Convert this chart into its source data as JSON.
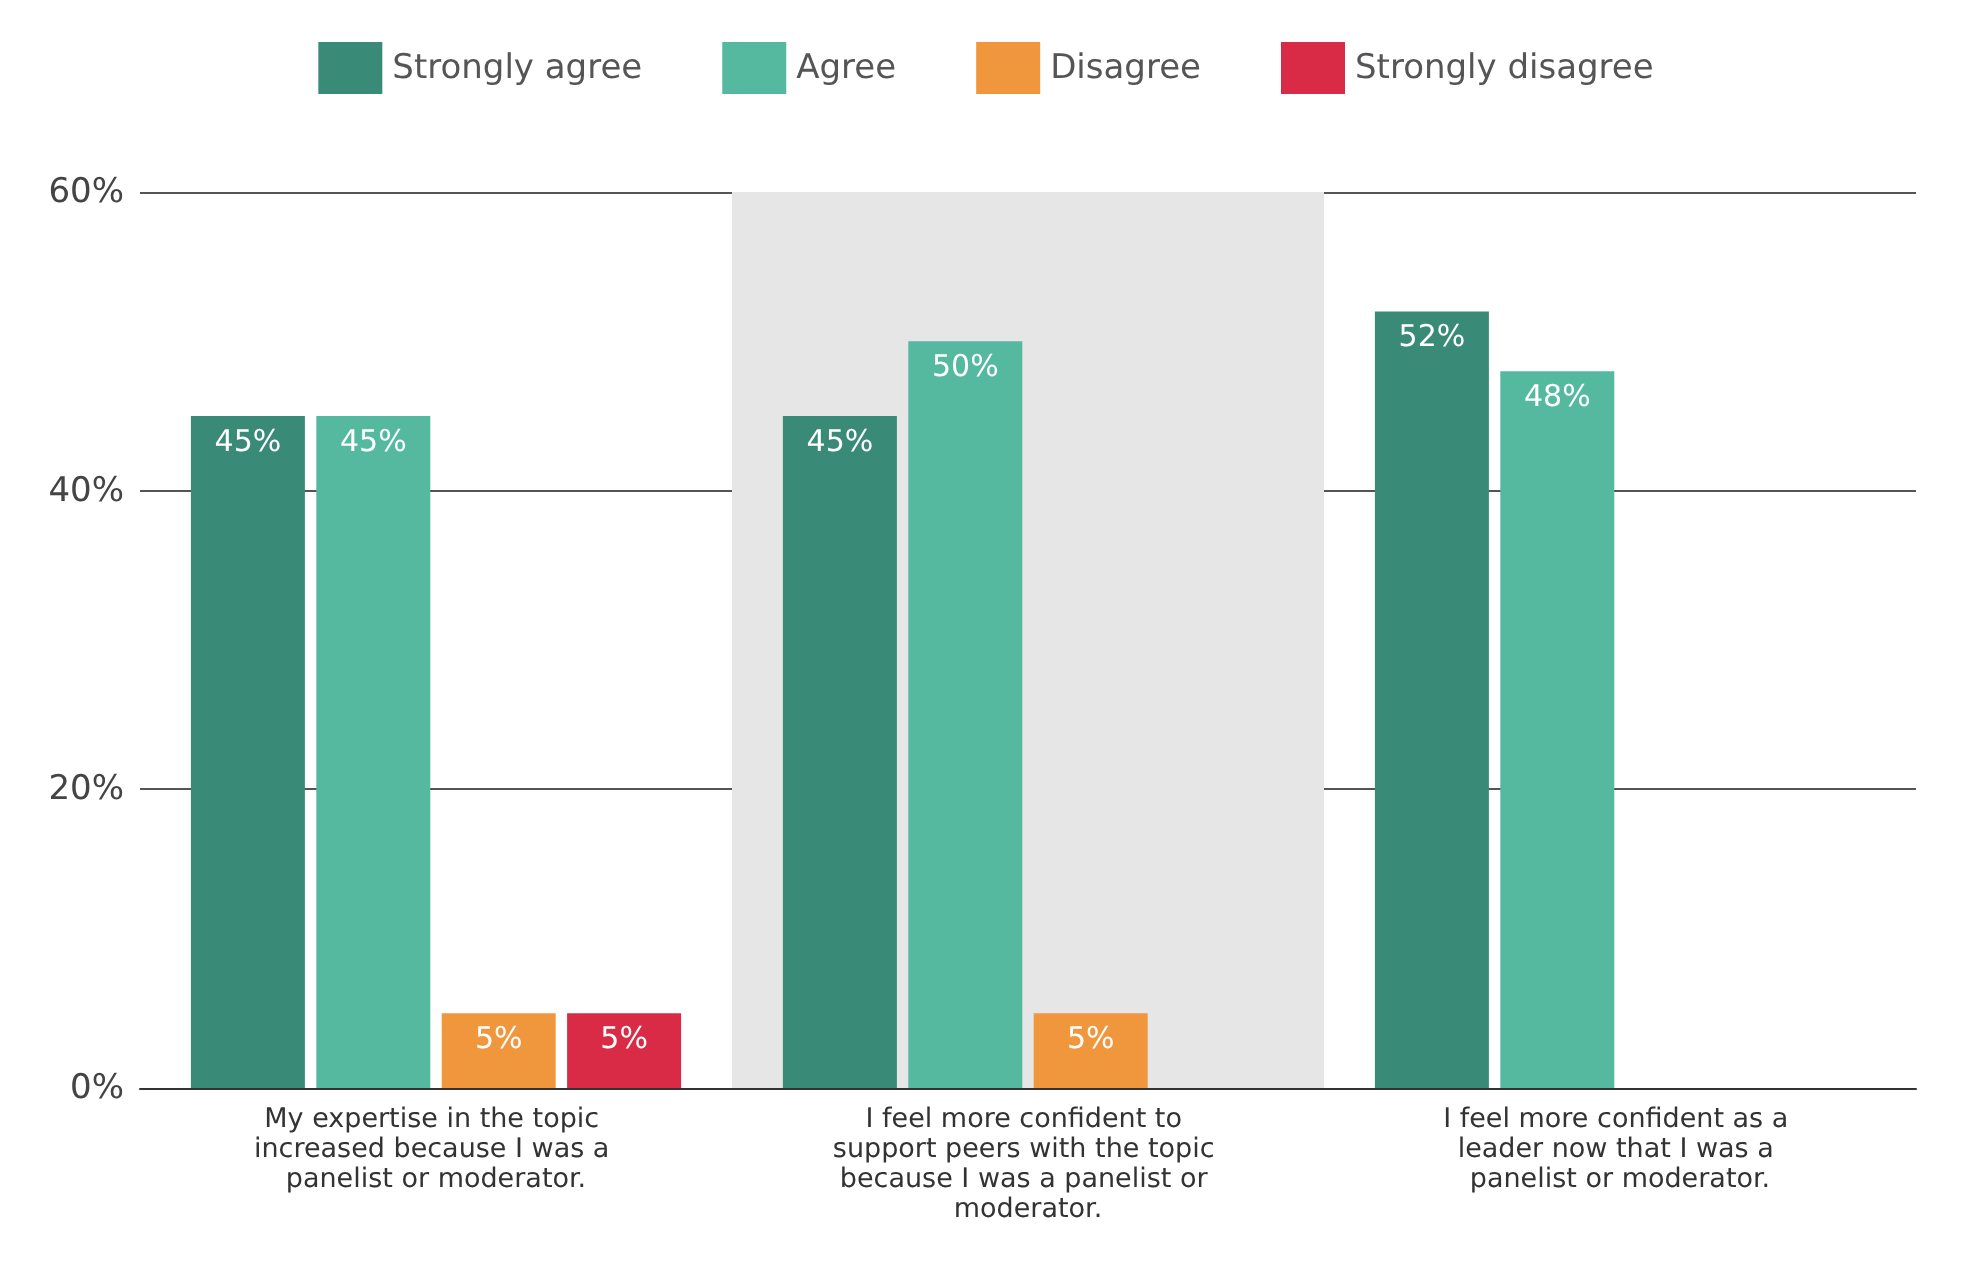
{
  "chart_data": {
    "type": "bar",
    "categories": [
      "My expertise in the topic increased because I was a panelist or moderator.",
      "I feel more confident to support peers with the topic because I was a panelist or moderator.",
      "I feel more confident as a leader now that I was a panelist or moderator."
    ],
    "series": [
      {
        "name": "Strongly agree",
        "color": "#3a8a78",
        "values": [
          45,
          45,
          52
        ],
        "value_labels": [
          "45%",
          "45%",
          "52%"
        ]
      },
      {
        "name": "Agree",
        "color": "#55b9a0",
        "values": [
          45,
          50,
          48
        ],
        "value_labels": [
          "45%",
          "50%",
          "48%"
        ]
      },
      {
        "name": "Disagree",
        "color": "#f0963c",
        "values": [
          5,
          5,
          null
        ],
        "value_labels": [
          "5%",
          "5%",
          null
        ]
      },
      {
        "name": "Strongly disagree",
        "color": "#d92b45",
        "values": [
          5,
          null,
          null
        ],
        "value_labels": [
          "5%",
          null,
          null
        ]
      }
    ],
    "ylim": [
      0,
      60
    ],
    "yticks": [
      {
        "value": 0,
        "label": "0%"
      },
      {
        "value": 20,
        "label": "20%"
      },
      {
        "value": 40,
        "label": "40%"
      },
      {
        "value": 60,
        "label": "60%"
      }
    ],
    "grid": "y",
    "legend": "top",
    "bands": [
      {
        "axis": "x",
        "from": "I feel more confident to support peers with the topic because I was a panelist or moderator.",
        "to": "I feel more confident to support peers with the topic because I was a panelist or moderator.",
        "color": "#e6e6e6"
      }
    ]
  }
}
